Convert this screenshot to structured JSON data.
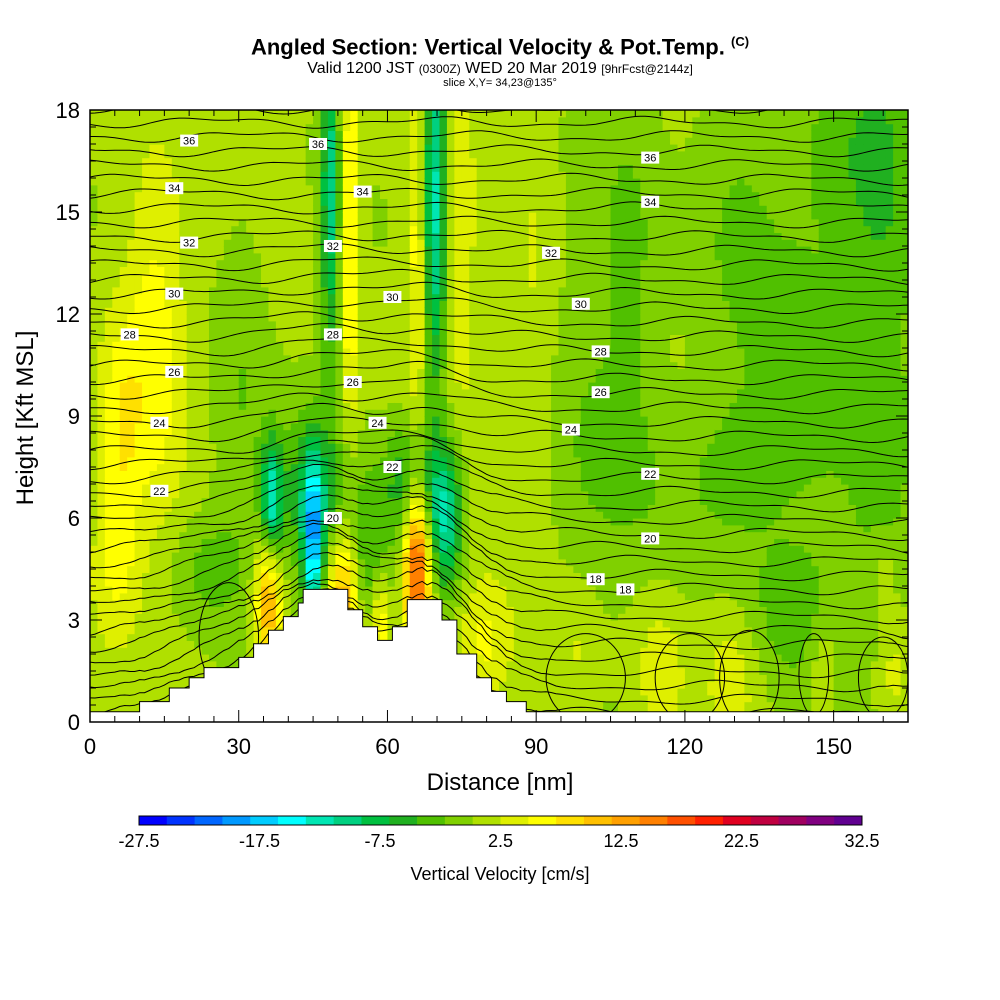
{
  "header": {
    "title": "Angled Section: Vertical Velocity & Pot.Temp.",
    "title_suffix": "(C)",
    "valid_main": "Valid 1200 JST",
    "valid_zulu": "(0300Z)",
    "valid_date": "WED 20 Mar 2019",
    "valid_fcst": "[9hrFcst@2144z]",
    "slice": "slice X,Y= 34,23@135°"
  },
  "chart_data": {
    "type": "heatmap",
    "xlabel": "Distance [nm]",
    "ylabel": "Height [Kft MSL]",
    "xlim": [
      0,
      165
    ],
    "ylim": [
      0,
      18
    ],
    "x_ticks": [
      0,
      30,
      60,
      90,
      120,
      150
    ],
    "y_ticks": [
      0,
      3,
      6,
      9,
      12,
      15,
      18
    ],
    "colorbar": {
      "title": "Vertical Velocity [cm/s]",
      "min": -30,
      "step": 2.5,
      "tick_labels": [
        "-27.5",
        "-17.5",
        "-7.5",
        "2.5",
        "12.5",
        "22.5",
        "32.5"
      ],
      "colors": [
        "#0000ff",
        "#0033ff",
        "#0066ff",
        "#0099ff",
        "#00ccff",
        "#00ffff",
        "#00e6b3",
        "#00d080",
        "#00c040",
        "#20b020",
        "#50c000",
        "#80d000",
        "#b0e000",
        "#dfef00",
        "#ffff00",
        "#ffe000",
        "#ffc000",
        "#ffa000",
        "#ff8000",
        "#ff5000",
        "#ff2000",
        "#e00020",
        "#c00040",
        "#a00060",
        "#800080",
        "#600090"
      ]
    },
    "terrain": [
      [
        0,
        0.3
      ],
      [
        10,
        0.3
      ],
      [
        10,
        0.6
      ],
      [
        16,
        0.6
      ],
      [
        16,
        1.0
      ],
      [
        20,
        1.0
      ],
      [
        20,
        1.3
      ],
      [
        23,
        1.3
      ],
      [
        23,
        1.6
      ],
      [
        30,
        1.6
      ],
      [
        30,
        1.9
      ],
      [
        33,
        1.9
      ],
      [
        33,
        2.3
      ],
      [
        36,
        2.3
      ],
      [
        36,
        2.7
      ],
      [
        39,
        2.7
      ],
      [
        39,
        3.1
      ],
      [
        42,
        3.1
      ],
      [
        42,
        3.5
      ],
      [
        43,
        3.5
      ],
      [
        43,
        3.9
      ],
      [
        52,
        3.9
      ],
      [
        52,
        3.3
      ],
      [
        55,
        3.3
      ],
      [
        55,
        2.8
      ],
      [
        58,
        2.8
      ],
      [
        58,
        2.4
      ],
      [
        61,
        2.4
      ],
      [
        61,
        2.8
      ],
      [
        64,
        2.8
      ],
      [
        64,
        3.6
      ],
      [
        71,
        3.6
      ],
      [
        71,
        3.0
      ],
      [
        74,
        3.0
      ],
      [
        74,
        2.0
      ],
      [
        78,
        2.0
      ],
      [
        78,
        1.3
      ],
      [
        81,
        1.3
      ],
      [
        81,
        0.9
      ],
      [
        84,
        0.9
      ],
      [
        84,
        0.6
      ],
      [
        88,
        0.6
      ],
      [
        88,
        0.3
      ],
      [
        165,
        0.3
      ]
    ],
    "velocity_features": [
      {
        "x": 36.5,
        "y": 6.3,
        "sx": 1.6,
        "sy": 1.3,
        "v": -18
      },
      {
        "x": 36,
        "y": 3.9,
        "sx": 1.8,
        "sy": 1.8,
        "v": 14
      },
      {
        "x": 45,
        "y": 5.2,
        "sx": 1.4,
        "sy": 1.8,
        "v": -17
      },
      {
        "x": 45,
        "y": 6.6,
        "sx": 4.5,
        "sy": 1.6,
        "v": -8
      },
      {
        "x": 51,
        "y": 3.4,
        "sx": 2.2,
        "sy": 1.5,
        "v": 13
      },
      {
        "x": 57,
        "y": 4.6,
        "sx": 3,
        "sy": 2,
        "v": -6
      },
      {
        "x": 58.5,
        "y": 3.0,
        "sx": 1.5,
        "sy": 1.2,
        "v": 9
      },
      {
        "x": 66,
        "y": 4.6,
        "sx": 1.9,
        "sy": 1.8,
        "v": 20
      },
      {
        "x": 72,
        "y": 5.6,
        "sx": 2.2,
        "sy": 1.5,
        "v": -9
      },
      {
        "x": 69,
        "y": 6.8,
        "sx": 4,
        "sy": 1.4,
        "v": -8
      },
      {
        "x": 63,
        "y": 7.2,
        "sx": 2.5,
        "sy": 1.2,
        "v": -5
      },
      {
        "x": 48.5,
        "y": 15.5,
        "sx": 1.3,
        "sy": 3.5,
        "v": -12
      },
      {
        "x": 52.5,
        "y": 14.5,
        "sx": 1.4,
        "sy": 4,
        "v": 8
      },
      {
        "x": 69.5,
        "y": 15.5,
        "sx": 1.6,
        "sy": 4,
        "v": -14
      },
      {
        "x": 66,
        "y": 14,
        "sx": 1.4,
        "sy": 3.5,
        "v": 6
      },
      {
        "x": 75,
        "y": 14,
        "sx": 1.6,
        "sy": 3.5,
        "v": 4
      },
      {
        "x": 13,
        "y": 11,
        "sx": 4,
        "sy": 3.5,
        "v": 6
      },
      {
        "x": 6,
        "y": 8.5,
        "sx": 3,
        "sy": 2.5,
        "v": 6
      },
      {
        "x": 5,
        "y": 4.5,
        "sx": 3.5,
        "sy": 1.5,
        "v": 4
      },
      {
        "x": 24,
        "y": 4.5,
        "sx": 5,
        "sy": 1.2,
        "v": -4
      },
      {
        "x": 30,
        "y": 9.5,
        "sx": 4,
        "sy": 4,
        "v": -3
      },
      {
        "x": 80,
        "y": 2.5,
        "sx": 4,
        "sy": 1.3,
        "v": 5
      },
      {
        "x": 109,
        "y": 13,
        "sx": 4,
        "sy": 4,
        "v": -3
      },
      {
        "x": 100,
        "y": 10,
        "sx": 6,
        "sy": 5,
        "v": -2
      },
      {
        "x": 143,
        "y": 10.5,
        "sx": 9,
        "sy": 5,
        "v": -4
      },
      {
        "x": 130,
        "y": 15,
        "sx": 6,
        "sy": 3,
        "v": -3
      },
      {
        "x": 160,
        "y": 12,
        "sx": 5,
        "sy": 7,
        "v": -4
      },
      {
        "x": 155,
        "y": 17,
        "sx": 8,
        "sy": 2,
        "v": -3
      },
      {
        "x": 115,
        "y": 7,
        "sx": 12,
        "sy": 2,
        "v": -2
      },
      {
        "x": 140,
        "y": 3,
        "sx": 10,
        "sy": 1.5,
        "v": -3
      },
      {
        "x": 98,
        "y": 2,
        "sx": 3,
        "sy": 1.5,
        "v": 3
      },
      {
        "x": 115,
        "y": 1.5,
        "sx": 3,
        "sy": 1.3,
        "v": 4
      },
      {
        "x": 130,
        "y": 1.8,
        "sx": 4,
        "sy": 1.5,
        "v": 4
      },
      {
        "x": 148,
        "y": 1.5,
        "sx": 2,
        "sy": 1.2,
        "v": 4
      },
      {
        "x": 162,
        "y": 1.4,
        "sx": 3,
        "sy": 1.2,
        "v": 4
      },
      {
        "x": 160,
        "y": 4.3,
        "sx": 2,
        "sy": 0.8,
        "v": 3
      },
      {
        "x": 90,
        "y": 12,
        "sx": 3,
        "sy": 5,
        "v": 2
      },
      {
        "x": 130,
        "y": 7.5,
        "sx": 6,
        "sy": 1.5,
        "v": -3
      }
    ],
    "theta_contour_labels": [
      {
        "x": 20,
        "y": 17.1,
        "text": "36"
      },
      {
        "x": 46,
        "y": 17.0,
        "text": "36"
      },
      {
        "x": 113,
        "y": 16.6,
        "text": "36"
      },
      {
        "x": 17,
        "y": 15.7,
        "text": "34"
      },
      {
        "x": 55,
        "y": 15.6,
        "text": "34"
      },
      {
        "x": 113,
        "y": 15.3,
        "text": "34"
      },
      {
        "x": 20,
        "y": 14.1,
        "text": "32"
      },
      {
        "x": 49,
        "y": 14.0,
        "text": "32"
      },
      {
        "x": 93,
        "y": 13.8,
        "text": "32"
      },
      {
        "x": 17,
        "y": 12.6,
        "text": "30"
      },
      {
        "x": 61,
        "y": 12.5,
        "text": "30"
      },
      {
        "x": 99,
        "y": 12.3,
        "text": "30"
      },
      {
        "x": 8,
        "y": 11.4,
        "text": "28"
      },
      {
        "x": 49,
        "y": 11.4,
        "text": "28"
      },
      {
        "x": 103,
        "y": 10.9,
        "text": "28"
      },
      {
        "x": 17,
        "y": 10.3,
        "text": "26"
      },
      {
        "x": 53,
        "y": 10.0,
        "text": "26"
      },
      {
        "x": 103,
        "y": 9.7,
        "text": "26"
      },
      {
        "x": 14,
        "y": 8.8,
        "text": "24"
      },
      {
        "x": 58,
        "y": 8.8,
        "text": "24"
      },
      {
        "x": 97,
        "y": 8.6,
        "text": "24"
      },
      {
        "x": 14,
        "y": 6.8,
        "text": "22"
      },
      {
        "x": 61,
        "y": 7.5,
        "text": "22"
      },
      {
        "x": 113,
        "y": 7.3,
        "text": "22"
      },
      {
        "x": 49,
        "y": 6.0,
        "text": "20"
      },
      {
        "x": 113,
        "y": 5.4,
        "text": "20"
      },
      {
        "x": 102,
        "y": 4.2,
        "text": "18"
      },
      {
        "x": 108,
        "y": 3.9,
        "text": "18"
      }
    ]
  }
}
